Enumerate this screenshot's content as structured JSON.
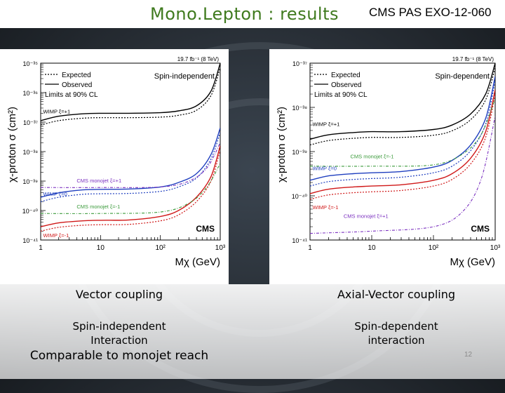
{
  "slide": {
    "title": "Mono.Lepton : results",
    "doc_ref": "CMS PAS EXO-12-060",
    "page_number": "12",
    "captions": {
      "left_coupling": "Vector coupling",
      "right_coupling": "Axial-Vector coupling",
      "left_interaction": "Spin-independent\nInteraction",
      "right_interaction": "Spin-dependent\ninteraction",
      "comparison": "Comparable to monojet reach"
    }
  },
  "colors": {
    "title_green": "#3f7a1e",
    "wimp_xi1": "#000000",
    "wimp_xi0": "#1f3fbf",
    "wimp_xim1": "#d01818",
    "monojet_plus1": "#7a2fbf",
    "monojet_minus1": "#3a9a3a"
  },
  "chart_data": [
    {
      "type": "line",
      "panel": "left",
      "energy_label": "19.7 fb⁻¹ (8 TeV)",
      "analysis_label": "Spin-independent",
      "experiment_label": "CMS",
      "xlabel": "Mχ (GeV)",
      "ylabel": "χ-proton σ (cm²)",
      "x_scale": "log",
      "y_scale": "log",
      "xlim": [
        1,
        1000
      ],
      "ylim_exp": [
        -41,
        -35
      ],
      "x_ticks": [
        {
          "v": 1,
          "t": "1"
        },
        {
          "v": 10,
          "t": "10"
        },
        {
          "v": 100,
          "t": "10²"
        },
        {
          "v": 1000,
          "t": "10³"
        }
      ],
      "y_ticks": [
        {
          "e": -35,
          "t": "10⁻³⁵"
        },
        {
          "e": -36,
          "t": "10⁻³⁶"
        },
        {
          "e": -37,
          "t": "10⁻³⁷"
        },
        {
          "e": -38,
          "t": "10⁻³⁸"
        },
        {
          "e": -39,
          "t": "10⁻³⁹"
        },
        {
          "e": -40,
          "t": "10⁻⁴⁰"
        },
        {
          "e": -41,
          "t": "10⁻⁴¹"
        }
      ],
      "legend": [
        "Expected",
        "Observed",
        "Limits at 90% CL"
      ],
      "series": [
        {
          "label": "WIMP ξ=+1",
          "color": "#000000",
          "x": [
            1,
            2,
            5,
            10,
            30,
            100,
            200,
            400,
            700,
            1000
          ],
          "observed_exp": [
            -36.95,
            -36.8,
            -36.72,
            -36.7,
            -36.7,
            -36.68,
            -36.62,
            -36.45,
            -35.95,
            -35.0
          ],
          "expected_exp": [
            -37.1,
            -36.95,
            -36.87,
            -36.85,
            -36.85,
            -36.83,
            -36.77,
            -36.6,
            -36.1,
            -35.15
          ]
        },
        {
          "label": "WIMP ξ=0",
          "color": "#1f3fbf",
          "x": [
            1,
            2,
            5,
            10,
            30,
            100,
            200,
            400,
            700,
            1000
          ],
          "observed_exp": [
            -39.55,
            -39.4,
            -39.3,
            -39.28,
            -39.27,
            -39.2,
            -39.05,
            -38.75,
            -38.1,
            -37.2
          ],
          "expected_exp": [
            -39.7,
            -39.55,
            -39.45,
            -39.43,
            -39.42,
            -39.35,
            -39.2,
            -38.9,
            -38.25,
            -37.35
          ]
        },
        {
          "label": "WIMP ξ=-1",
          "color": "#d01818",
          "x": [
            1,
            2,
            5,
            10,
            30,
            100,
            200,
            400,
            700,
            1000
          ],
          "observed_exp": [
            -40.55,
            -40.42,
            -40.35,
            -40.33,
            -40.32,
            -40.2,
            -40.0,
            -39.55,
            -38.85,
            -37.8
          ],
          "expected_exp": [
            -40.7,
            -40.57,
            -40.5,
            -40.48,
            -40.47,
            -40.35,
            -40.15,
            -39.7,
            -39.0,
            -37.95
          ]
        },
        {
          "label": "CMS monojet ξ=+1",
          "color": "#7a2fbf",
          "x": [
            1,
            10,
            100,
            300,
            600,
            1000
          ],
          "observed_exp": [
            -39.22,
            -39.22,
            -39.2,
            -39.0,
            -38.55,
            -37.7
          ]
        },
        {
          "label": "CMS monojet ξ=-1",
          "color": "#3a9a3a",
          "x": [
            1,
            10,
            100,
            300,
            600,
            1000
          ],
          "observed_exp": [
            -40.1,
            -40.1,
            -40.05,
            -39.75,
            -39.2,
            -38.4
          ]
        }
      ]
    },
    {
      "type": "line",
      "panel": "right",
      "energy_label": "19.7 fb⁻¹ (8 TeV)",
      "analysis_label": "Spin-dependent",
      "experiment_label": "CMS",
      "xlabel": "Mχ (GeV)",
      "ylabel": "χ-proton σ (cm²)",
      "x_scale": "log",
      "y_scale": "log",
      "xlim": [
        1,
        1000
      ],
      "ylim_exp": [
        -41,
        -37
      ],
      "x_ticks": [
        {
          "v": 1,
          "t": "1"
        },
        {
          "v": 10,
          "t": "10"
        },
        {
          "v": 100,
          "t": "10²"
        },
        {
          "v": 1000,
          "t": "10³"
        }
      ],
      "y_ticks": [
        {
          "e": -37,
          "t": "10⁻³⁷"
        },
        {
          "e": -38,
          "t": "10⁻³⁸"
        },
        {
          "e": -39,
          "t": "10⁻³⁹"
        },
        {
          "e": -40,
          "t": "10⁻⁴⁰"
        },
        {
          "e": -41,
          "t": "10⁻⁴¹"
        }
      ],
      "legend": [
        "Expected",
        "Observed",
        "Limits at 90% CL"
      ],
      "series": [
        {
          "label": "WIMP ξ=+1",
          "color": "#000000",
          "x": [
            1,
            2,
            5,
            10,
            30,
            100,
            200,
            400,
            700,
            1000
          ],
          "observed_exp": [
            -38.72,
            -38.62,
            -38.57,
            -38.55,
            -38.55,
            -38.5,
            -38.4,
            -38.15,
            -37.7,
            -37.0
          ],
          "expected_exp": [
            -38.85,
            -38.75,
            -38.7,
            -38.68,
            -38.68,
            -38.63,
            -38.53,
            -38.28,
            -37.83,
            -37.1
          ]
        },
        {
          "label": "WIMP ξ=0",
          "color": "#1f3fbf",
          "x": [
            1,
            2,
            5,
            10,
            30,
            100,
            200,
            400,
            700,
            1000
          ],
          "observed_exp": [
            -39.65,
            -39.55,
            -39.5,
            -39.48,
            -39.45,
            -39.35,
            -39.2,
            -38.85,
            -38.25,
            -37.3
          ],
          "expected_exp": [
            -39.78,
            -39.68,
            -39.63,
            -39.61,
            -39.58,
            -39.48,
            -39.33,
            -38.98,
            -38.38,
            -37.4
          ]
        },
        {
          "label": "WIMP ξ=-1",
          "color": "#d01818",
          "x": [
            1,
            2,
            5,
            10,
            30,
            100,
            200,
            400,
            700,
            1000
          ],
          "observed_exp": [
            -39.95,
            -39.85,
            -39.8,
            -39.78,
            -39.75,
            -39.65,
            -39.5,
            -39.15,
            -38.55,
            -37.6
          ],
          "expected_exp": [
            -40.08,
            -39.98,
            -39.93,
            -39.91,
            -39.88,
            -39.78,
            -39.63,
            -39.28,
            -38.68,
            -37.7
          ]
        },
        {
          "label": "CMS monojet ξ=-1",
          "color": "#3a9a3a",
          "x": [
            1,
            10,
            100,
            300,
            600,
            1000
          ],
          "observed_exp": [
            -39.33,
            -39.33,
            -39.3,
            -39.05,
            -38.6,
            -37.8
          ]
        },
        {
          "label": "CMS monojet ξ=+1",
          "color": "#7a2fbf",
          "x": [
            1,
            10,
            100,
            300,
            600,
            1000
          ],
          "observed_exp": [
            -40.85,
            -40.8,
            -40.7,
            -40.35,
            -39.6,
            -38.2
          ]
        }
      ]
    }
  ]
}
